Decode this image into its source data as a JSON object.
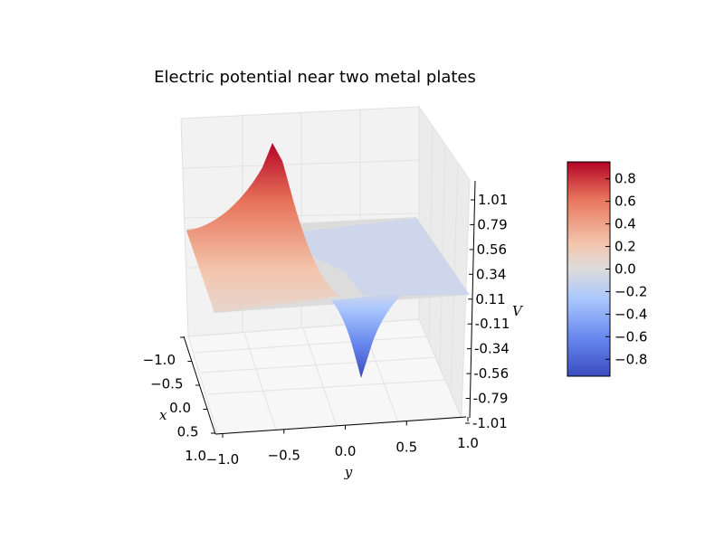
{
  "chart_data": {
    "type": "surface3d",
    "title": "Electric potential near two metal plates",
    "xlabel": "x",
    "ylabel": "y",
    "zlabel": "V",
    "x_ticks": [
      "−1.0",
      "−0.5",
      "0.0",
      "0.5",
      "1.0"
    ],
    "y_ticks": [
      "−1.0",
      "−0.5",
      "0.0",
      "0.5",
      "1.0"
    ],
    "z_ticks": [
      "1.01",
      "0.79",
      "0.56",
      "0.34",
      "0.11",
      "-0.11",
      "-0.34",
      "-0.56",
      "-0.79",
      "-1.01"
    ],
    "zlim": [
      -1.01,
      1.01
    ],
    "colormap": "coolwarm",
    "colorbar": {
      "ticks": [
        "0.8",
        "0.6",
        "0.4",
        "0.2",
        "0.0",
        "−0.2",
        "−0.4",
        "−0.6",
        "−0.8"
      ],
      "range": [
        -0.95,
        0.95
      ],
      "colors": [
        "#b40426",
        "#e7745b",
        "#f4c5ad",
        "#dddcdc",
        "#aac7fd",
        "#6788ee",
        "#3b4cc0"
      ]
    },
    "surface": {
      "peak_positive": {
        "x": -1.0,
        "y": -0.6,
        "V": 0.95
      },
      "peak_negative": {
        "x": 1.0,
        "y": 0.1,
        "V": -0.95
      },
      "baseline_V": 0.0
    }
  }
}
